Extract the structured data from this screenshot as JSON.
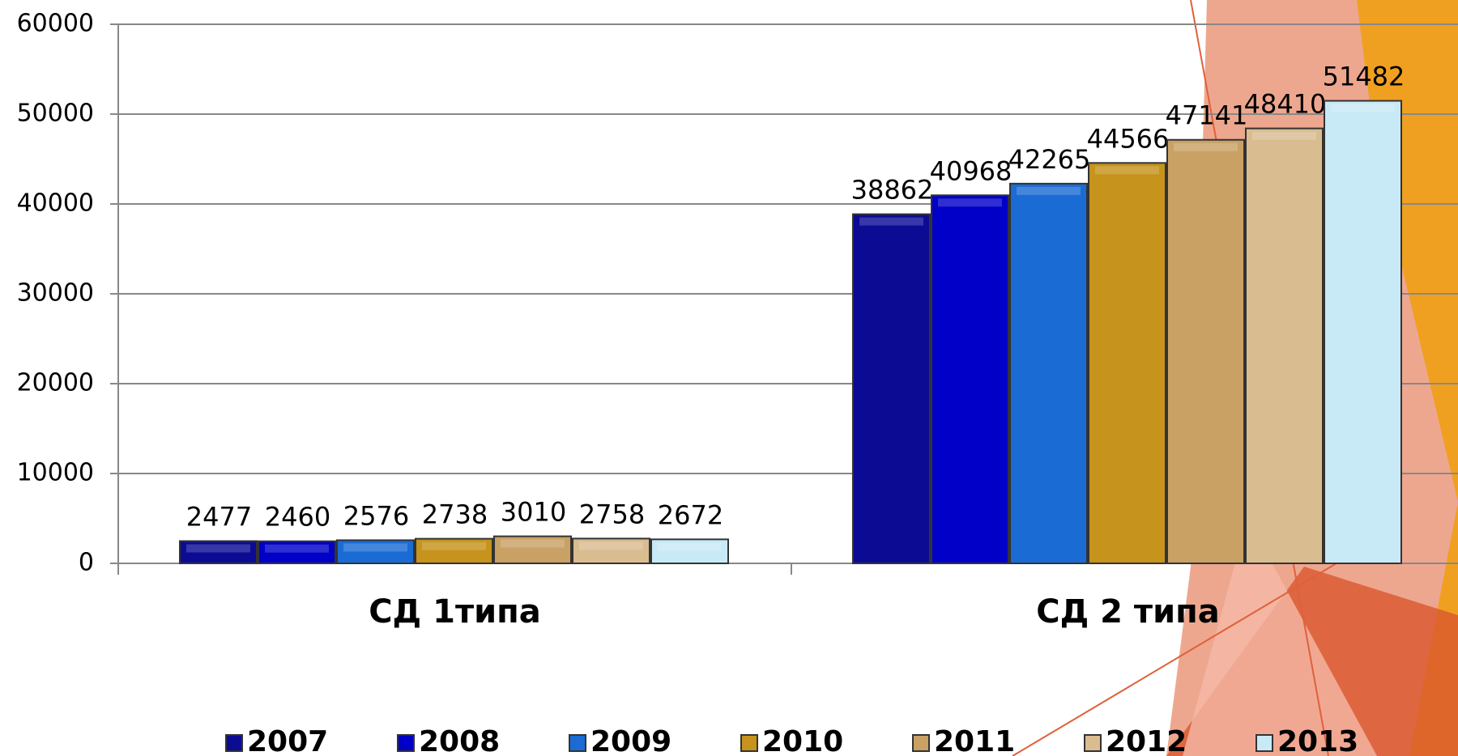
{
  "chart_data": {
    "type": "bar",
    "categories": [
      "СД 1типа",
      "СД 2 типа"
    ],
    "series": [
      {
        "name": "2007",
        "color": "#0b0b94",
        "values": [
          2477,
          38862
        ]
      },
      {
        "name": "2008",
        "color": "#0000c8",
        "values": [
          2460,
          40968
        ]
      },
      {
        "name": "2009",
        "color": "#1a6cd4",
        "values": [
          2576,
          42265
        ]
      },
      {
        "name": "2010",
        "color": "#c6931c",
        "values": [
          2738,
          44566
        ]
      },
      {
        "name": "2011",
        "color": "#c9a165",
        "values": [
          3010,
          47141
        ]
      },
      {
        "name": "2012",
        "color": "#d9bc90",
        "values": [
          2758,
          48410
        ]
      },
      {
        "name": "2013",
        "color": "#c8eaf6",
        "values": [
          2672,
          51482
        ]
      }
    ],
    "ylim": [
      0,
      60000
    ],
    "yticks": [
      0,
      10000,
      20000,
      30000,
      40000,
      50000,
      60000
    ],
    "grid": true,
    "legend": "bottom"
  }
}
